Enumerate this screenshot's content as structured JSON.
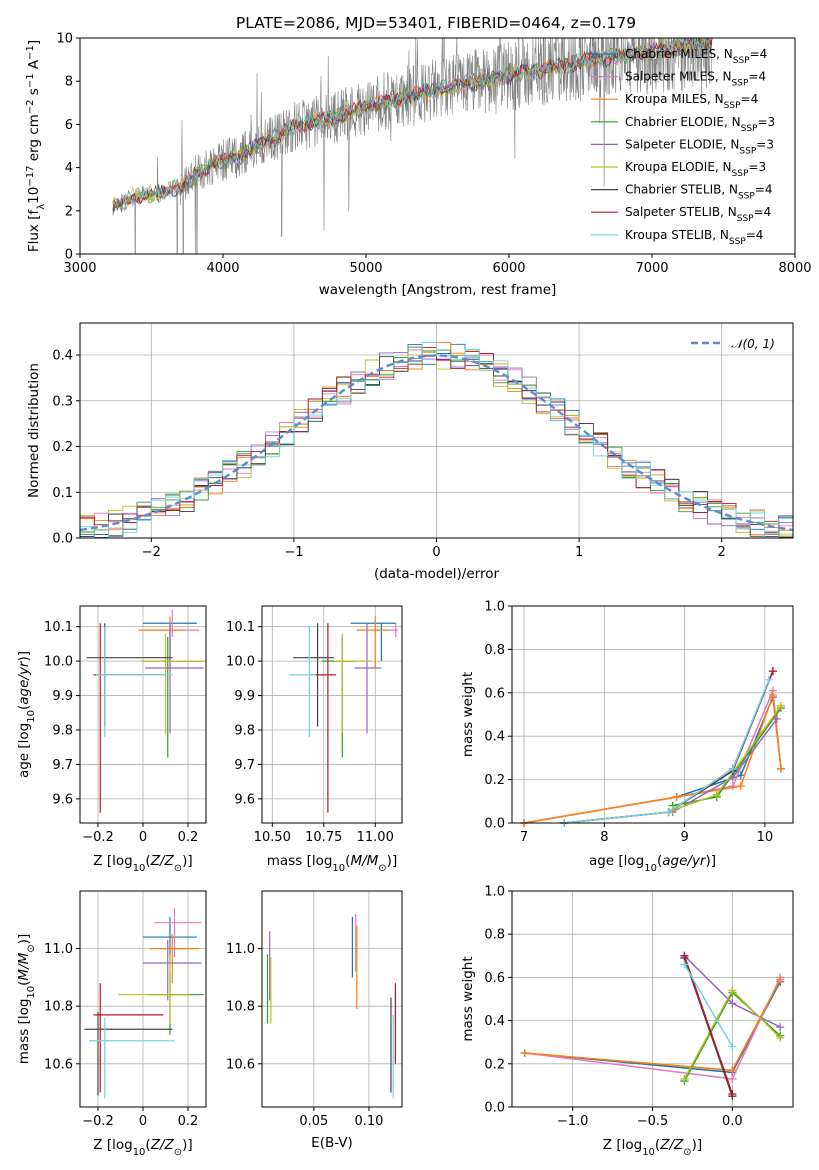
{
  "figure": {
    "title": "PLATE=2086, MJD=53401, FIBERID=0464, z=0.179"
  },
  "models": [
    {
      "name": "Chabrier MILES",
      "nssp": "4",
      "color": "#1f77b4"
    },
    {
      "name": "Salpeter MILES",
      "nssp": "4",
      "color": "#e377c2"
    },
    {
      "name": "Kroupa MILES",
      "nssp": "4",
      "color": "#ff7f0e"
    },
    {
      "name": "Chabrier ELODIE",
      "nssp": "3",
      "color": "#2ca02c"
    },
    {
      "name": "Salpeter ELODIE",
      "nssp": "3",
      "color": "#9467bd"
    },
    {
      "name": "Kroupa ELODIE",
      "nssp": "3",
      "color": "#bcbd22"
    },
    {
      "name": "Chabrier STELIB",
      "nssp": "4",
      "color": "#444444"
    },
    {
      "name": "Salpeter STELIB",
      "nssp": "4",
      "color": "#b2182b"
    },
    {
      "name": "Kroupa STELIB",
      "nssp": "4",
      "color": "#6dd6e0"
    }
  ],
  "chart_data": [
    {
      "id": "spectrum",
      "type": "line",
      "xlabel": "wavelength [Angstrom, rest frame]",
      "ylabel": "Flux [f_λ 10^-17 erg cm^-2 s^-1 A^-1]",
      "xlim": [
        3000,
        8000
      ],
      "ylim": [
        0,
        10
      ],
      "xticks": [
        3000,
        4000,
        5000,
        6000,
        7000,
        8000
      ],
      "yticks": [
        0,
        2,
        4,
        6,
        8,
        10
      ],
      "grid": false,
      "legend": "top-right",
      "data_color": "#808080",
      "x_range": [
        3230,
        7420
      ],
      "continuum": [
        [
          3230,
          2.2
        ],
        [
          3400,
          2.7
        ],
        [
          3550,
          2.8
        ],
        [
          3700,
          3.1
        ],
        [
          3800,
          3.6
        ],
        [
          3950,
          4.3
        ],
        [
          4100,
          4.5
        ],
        [
          4300,
          5.2
        ],
        [
          4500,
          5.9
        ],
        [
          4700,
          6.2
        ],
        [
          4900,
          6.6
        ],
        [
          5100,
          7.0
        ],
        [
          5300,
          7.3
        ],
        [
          5500,
          7.6
        ],
        [
          5700,
          7.9
        ],
        [
          5900,
          8.1
        ],
        [
          6100,
          8.4
        ],
        [
          6300,
          8.6
        ],
        [
          6500,
          8.9
        ],
        [
          6700,
          9.1
        ],
        [
          6900,
          9.3
        ],
        [
          7100,
          9.5
        ],
        [
          7300,
          9.7
        ],
        [
          7420,
          9.8
        ]
      ]
    },
    {
      "id": "residuals",
      "type": "bar",
      "xlabel": "(data-model)/error",
      "ylabel": "Normed distribution",
      "xlim": [
        -2.5,
        2.5
      ],
      "ylim": [
        0,
        0.47
      ],
      "xticks": [
        -2,
        -1,
        0,
        1,
        2
      ],
      "yticks": [
        0.0,
        0.1,
        0.2,
        0.3,
        0.4
      ],
      "bin_width": 0.1,
      "grid": true,
      "legend": "top-right",
      "reference": {
        "name": "𝒩(0, 1)",
        "color": "#5b8bd0",
        "mu": 0,
        "sigma": 1
      }
    },
    {
      "id": "age_vs_Z",
      "type": "scatter",
      "xlabel": "Z [log10(Z/Z⊙)]",
      "ylabel": "age [log10(age/yr)]",
      "xlim": [
        -0.28,
        0.28
      ],
      "ylim": [
        9.53,
        10.16
      ],
      "xticks": [
        -0.2,
        0.0,
        0.2
      ],
      "yticks": [
        9.6,
        9.7,
        9.8,
        9.9,
        10.0,
        10.1
      ],
      "grid": true,
      "points": [
        {
          "x": 0.12,
          "y": 10.11,
          "xerr": [
            0.12,
            0.12
          ],
          "yerr": [
            0.11,
            0.0
          ],
          "color": "#1f77b4"
        },
        {
          "x": 0.13,
          "y": 10.09,
          "xerr": [
            0.12,
            0.12
          ],
          "yerr": [
            0.02,
            0.06
          ],
          "color": "#e377c2"
        },
        {
          "x": 0.12,
          "y": 10.09,
          "xerr": [
            0.14,
            0.06
          ],
          "yerr": [
            0.11,
            0.04
          ],
          "color": "#ff7f0e"
        },
        {
          "x": 0.11,
          "y": 10.0,
          "xerr": [
            0.11,
            0.15
          ],
          "yerr": [
            0.28,
            0.07
          ],
          "color": "#2ca02c"
        },
        {
          "x": 0.12,
          "y": 9.98,
          "xerr": [
            0.11,
            0.15
          ],
          "yerr": [
            0.19,
            0.13
          ],
          "color": "#9467bd"
        },
        {
          "x": 0.1,
          "y": 10.0,
          "xerr": [
            0.11,
            0.18
          ],
          "yerr": [
            0.21,
            0.08
          ],
          "color": "#bcbd22"
        },
        {
          "x": -0.17,
          "y": 10.01,
          "xerr": [
            0.08,
            0.3
          ],
          "yerr": [
            0.2,
            0.1
          ],
          "color": "#444444"
        },
        {
          "x": -0.19,
          "y": 9.96,
          "xerr": [
            0.03,
            0.28
          ],
          "yerr": [
            0.4,
            0.15
          ],
          "color": "#b2182b"
        },
        {
          "x": -0.17,
          "y": 9.96,
          "xerr": [
            0.04,
            0.3
          ],
          "yerr": [
            0.18,
            0.14
          ],
          "color": "#6dd6e0"
        }
      ]
    },
    {
      "id": "age_vs_mass",
      "type": "scatter",
      "xlabel": "mass [log10(M/M⊙)]",
      "ylabel": "",
      "xlim": [
        10.45,
        11.13
      ],
      "ylim": [
        9.53,
        10.16
      ],
      "xticks": [
        10.5,
        10.75,
        11.0
      ],
      "xticklabels": [
        "10.50",
        "10.75",
        "11.00"
      ],
      "yticks": [
        9.6,
        9.7,
        9.8,
        9.9,
        10.0,
        10.1
      ],
      "grid": true,
      "points": [
        {
          "x": 11.03,
          "y": 10.11,
          "xerr": [
            0.15,
            0.07
          ],
          "yerr": [
            0.11,
            0.0
          ],
          "color": "#1f77b4"
        },
        {
          "x": 11.1,
          "y": 10.09,
          "xerr": [
            0.11,
            0.01
          ],
          "yerr": [
            0.02,
            0.02
          ],
          "color": "#e377c2"
        },
        {
          "x": 11.0,
          "y": 10.09,
          "xerr": [
            0.09,
            0.06
          ],
          "yerr": [
            0.11,
            0.04
          ],
          "color": "#ff7f0e"
        },
        {
          "x": 10.84,
          "y": 10.0,
          "xerr": [
            0.1,
            0.06
          ],
          "yerr": [
            0.28,
            0.07
          ],
          "color": "#2ca02c"
        },
        {
          "x": 10.96,
          "y": 9.98,
          "xerr": [
            0.06,
            0.07
          ],
          "yerr": [
            0.19,
            0.13
          ],
          "color": "#9467bd"
        },
        {
          "x": 10.84,
          "y": 10.0,
          "xerr": [
            0.04,
            0.14
          ],
          "yerr": [
            0.21,
            0.08
          ],
          "color": "#bcbd22"
        },
        {
          "x": 10.72,
          "y": 10.01,
          "xerr": [
            0.12,
            0.08
          ],
          "yerr": [
            0.2,
            0.1
          ],
          "color": "#444444"
        },
        {
          "x": 10.77,
          "y": 9.96,
          "xerr": [
            0.08,
            0.04
          ],
          "yerr": [
            0.4,
            0.15
          ],
          "color": "#b2182b"
        },
        {
          "x": 10.68,
          "y": 9.96,
          "xerr": [
            0.1,
            0.03
          ],
          "yerr": [
            0.18,
            0.14
          ],
          "color": "#6dd6e0"
        }
      ]
    },
    {
      "id": "mw_vs_age",
      "type": "line",
      "xlabel": "age [log10(age/yr)]",
      "ylabel": "mass weight",
      "xlim": [
        6.85,
        10.35
      ],
      "ylim": [
        0,
        1
      ],
      "xticks": [
        7,
        8,
        9,
        10
      ],
      "yticks": [
        0.0,
        0.2,
        0.4,
        0.6,
        0.8,
        1.0
      ],
      "grid": true,
      "series": [
        {
          "color": "#1f77b4",
          "x": [
            7.0,
            8.9,
            9.7,
            10.1,
            10.2
          ],
          "y": [
            0.0,
            0.12,
            0.22,
            0.58,
            0.25
          ]
        },
        {
          "color": "#e377c2",
          "x": [
            7.0,
            8.9,
            9.6,
            10.1,
            10.2
          ],
          "y": [
            0.0,
            0.12,
            0.17,
            0.61,
            0.25
          ]
        },
        {
          "color": "#ff7f0e",
          "x": [
            7.0,
            8.9,
            9.7,
            10.1,
            10.2
          ],
          "y": [
            0.0,
            0.12,
            0.17,
            0.59,
            0.25
          ]
        },
        {
          "color": "#2ca02c",
          "x": [
            8.85,
            9.4,
            10.2
          ],
          "y": [
            0.08,
            0.12,
            0.53
          ]
        },
        {
          "color": "#9467bd",
          "x": [
            8.85,
            9.6,
            10.15
          ],
          "y": [
            0.05,
            0.21,
            0.48
          ]
        },
        {
          "color": "#bcbd22",
          "x": [
            8.85,
            9.4,
            10.2
          ],
          "y": [
            0.06,
            0.13,
            0.54
          ]
        },
        {
          "color": "#444444",
          "x": [
            7.5,
            8.8,
            9.6,
            10.1
          ],
          "y": [
            0.0,
            0.05,
            0.24,
            0.7
          ]
        },
        {
          "color": "#b2182b",
          "x": [
            7.5,
            8.8,
            9.6,
            10.1
          ],
          "y": [
            0.0,
            0.05,
            0.25,
            0.7
          ]
        },
        {
          "color": "#6dd6e0",
          "x": [
            7.5,
            8.8,
            9.6,
            10.05
          ],
          "y": [
            0.0,
            0.05,
            0.25,
            0.66
          ]
        }
      ]
    },
    {
      "id": "mass_vs_Z",
      "type": "scatter",
      "xlabel": "Z [log10(Z/Z⊙)]",
      "ylabel": "mass [log10(M/M⊙)]",
      "xlim": [
        -0.28,
        0.28
      ],
      "ylim": [
        10.45,
        11.2
      ],
      "xticks": [
        -0.2,
        0.0,
        0.2
      ],
      "yticks": [
        10.6,
        10.8,
        11.0
      ],
      "grid": true,
      "points": [
        {
          "x": 0.12,
          "y": 11.04,
          "xerr": [
            0.12,
            0.12
          ],
          "yerr": [
            0.09,
            0.07
          ],
          "color": "#1f77b4"
        },
        {
          "x": 0.14,
          "y": 11.09,
          "xerr": [
            0.09,
            0.12
          ],
          "yerr": [
            0.12,
            0.05
          ],
          "color": "#e377c2"
        },
        {
          "x": 0.13,
          "y": 11.0,
          "xerr": [
            0.1,
            0.12
          ],
          "yerr": [
            0.12,
            0.05
          ],
          "color": "#ff7f0e"
        },
        {
          "x": 0.12,
          "y": 10.84,
          "xerr": [
            0.1,
            0.15
          ],
          "yerr": [
            0.14,
            0.08
          ],
          "color": "#2ca02c"
        },
        {
          "x": 0.11,
          "y": 10.95,
          "xerr": [
            0.11,
            0.15
          ],
          "yerr": [
            0.13,
            0.08
          ],
          "color": "#9467bd"
        },
        {
          "x": 0.12,
          "y": 10.84,
          "xerr": [
            0.23,
            0.09
          ],
          "yerr": [
            0.1,
            0.14
          ],
          "color": "#bcbd22"
        },
        {
          "x": -0.2,
          "y": 10.72,
          "xerr": [
            0.06,
            0.33
          ],
          "yerr": [
            0.23,
            0.06
          ],
          "color": "#444444"
        },
        {
          "x": -0.19,
          "y": 10.77,
          "xerr": [
            0.03,
            0.28
          ],
          "yerr": [
            0.27,
            0.11
          ],
          "color": "#b2182b"
        },
        {
          "x": -0.17,
          "y": 10.68,
          "xerr": [
            0.07,
            0.31
          ],
          "yerr": [
            0.2,
            0.08
          ],
          "color": "#6dd6e0"
        }
      ]
    },
    {
      "id": "mass_vs_ebv",
      "type": "scatter",
      "xlabel": "E(B-V)",
      "ylabel": "",
      "xlim": [
        0.003,
        0.13
      ],
      "ylim": [
        10.45,
        11.2
      ],
      "xticks": [
        0.05,
        0.1
      ],
      "xticklabels": [
        "0.05",
        "0.10"
      ],
      "yticks": [
        10.6,
        10.8,
        11.0
      ],
      "grid": true,
      "points": [
        {
          "x": 0.085,
          "y": 11.0,
          "xerr": [
            0,
            0
          ],
          "yerr": [
            0.1,
            0.11
          ],
          "color": "#1f77b4"
        },
        {
          "x": 0.088,
          "y": 11.0,
          "xerr": [
            0,
            0
          ],
          "yerr": [
            0.08,
            0.12
          ],
          "color": "#e377c2"
        },
        {
          "x": 0.089,
          "y": 10.98,
          "xerr": [
            0,
            0
          ],
          "yerr": [
            0.19,
            0.1
          ],
          "color": "#ff7f0e"
        },
        {
          "x": 0.008,
          "y": 10.84,
          "xerr": [
            0,
            0
          ],
          "yerr": [
            0.1,
            0.14
          ],
          "color": "#2ca02c"
        },
        {
          "x": 0.01,
          "y": 10.95,
          "xerr": [
            0,
            0
          ],
          "yerr": [
            0.13,
            0.11
          ],
          "color": "#9467bd"
        },
        {
          "x": 0.011,
          "y": 10.84,
          "xerr": [
            0,
            0
          ],
          "yerr": [
            0.1,
            0.13
          ],
          "color": "#bcbd22"
        },
        {
          "x": 0.12,
          "y": 10.7,
          "xerr": [
            0,
            0
          ],
          "yerr": [
            0.2,
            0.13
          ],
          "color": "#444444"
        },
        {
          "x": 0.124,
          "y": 10.75,
          "xerr": [
            0,
            0
          ],
          "yerr": [
            0.15,
            0.13
          ],
          "color": "#b2182b"
        },
        {
          "x": 0.122,
          "y": 10.65,
          "xerr": [
            0,
            0
          ],
          "yerr": [
            0.17,
            0.12
          ],
          "color": "#6dd6e0"
        }
      ]
    },
    {
      "id": "mw_vs_Z",
      "type": "line",
      "xlabel": "Z [log10(Z/Z⊙)]",
      "ylabel": "mass weight",
      "xlim": [
        -1.38,
        0.38
      ],
      "ylim": [
        0,
        1
      ],
      "xticks": [
        -1.0,
        -0.5,
        0.0
      ],
      "xticklabels": [
        "−1.0",
        "−0.5",
        "0.0"
      ],
      "yticks": [
        0.0,
        0.2,
        0.4,
        0.6,
        0.8,
        1.0
      ],
      "grid": true,
      "series": [
        {
          "color": "#1f77b4",
          "x": [
            -1.3,
            0.0,
            0.3
          ],
          "y": [
            0.25,
            0.16,
            0.58
          ]
        },
        {
          "color": "#e377c2",
          "x": [
            -1.3,
            0.0,
            0.3
          ],
          "y": [
            0.25,
            0.13,
            0.6
          ]
        },
        {
          "color": "#ff7f0e",
          "x": [
            -1.3,
            0.0,
            0.3
          ],
          "y": [
            0.25,
            0.17,
            0.59
          ]
        },
        {
          "color": "#2ca02c",
          "x": [
            -0.3,
            0.0,
            0.3
          ],
          "y": [
            0.12,
            0.53,
            0.33
          ]
        },
        {
          "color": "#9467bd",
          "x": [
            -0.3,
            0.0,
            0.3
          ],
          "y": [
            0.7,
            0.48,
            0.37
          ]
        },
        {
          "color": "#bcbd22",
          "x": [
            -0.3,
            0.0,
            0.3
          ],
          "y": [
            0.13,
            0.54,
            0.32
          ]
        },
        {
          "color": "#444444",
          "x": [
            -0.3,
            0.0
          ],
          "y": [
            0.69,
            0.05
          ]
        },
        {
          "color": "#b2182b",
          "x": [
            -0.3,
            0.0
          ],
          "y": [
            0.7,
            0.06
          ]
        },
        {
          "color": "#6dd6e0",
          "x": [
            -0.3,
            0.0
          ],
          "y": [
            0.66,
            0.28
          ]
        }
      ]
    }
  ]
}
